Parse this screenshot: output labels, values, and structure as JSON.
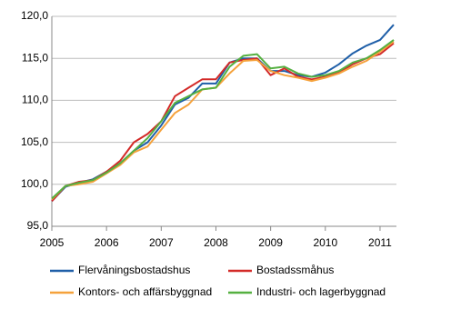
{
  "chart_data": {
    "type": "line",
    "x": [
      2005,
      2005.25,
      2005.5,
      2005.75,
      2006,
      2006.25,
      2006.5,
      2006.75,
      2007,
      2007.25,
      2007.5,
      2007.75,
      2008,
      2008.25,
      2008.5,
      2008.75,
      2009,
      2009.25,
      2009.5,
      2009.75,
      2010,
      2010.25,
      2010.5,
      2010.75,
      2011,
      2011.25
    ],
    "series": [
      {
        "name": "Flervåningsbostadshus",
        "color": "#1f5fa8",
        "values": [
          98.0,
          99.7,
          100.2,
          100.6,
          101.5,
          102.5,
          104.0,
          105.0,
          107.0,
          109.5,
          110.3,
          112.0,
          112.0,
          114.5,
          115.0,
          115.0,
          113.5,
          113.5,
          113.0,
          112.8,
          113.3,
          114.3,
          115.6,
          116.5,
          117.2,
          119.0
        ]
      },
      {
        "name": "Bostadssmåhus",
        "color": "#d32a28",
        "values": [
          98.0,
          99.8,
          100.3,
          100.5,
          101.5,
          102.8,
          105.0,
          106.0,
          107.5,
          110.5,
          111.5,
          112.5,
          112.5,
          114.5,
          114.8,
          115.0,
          113.0,
          113.8,
          112.8,
          112.5,
          112.8,
          113.3,
          114.3,
          115.0,
          115.5,
          116.8
        ]
      },
      {
        "name": "Kontors- och affärsbyggnad",
        "color": "#f5a23c",
        "values": [
          98.2,
          99.8,
          100.0,
          100.3,
          101.3,
          102.3,
          103.8,
          104.5,
          106.5,
          108.5,
          109.5,
          111.3,
          111.5,
          113.2,
          114.7,
          114.8,
          113.5,
          113.0,
          112.7,
          112.3,
          112.7,
          113.2,
          114.0,
          114.7,
          115.8,
          117.0
        ]
      },
      {
        "name": "Industri- och lagerbyggnad",
        "color": "#55b041",
        "values": [
          98.3,
          99.8,
          100.2,
          100.5,
          101.4,
          102.5,
          104.0,
          105.5,
          107.5,
          109.7,
          110.5,
          111.3,
          111.5,
          114.0,
          115.3,
          115.5,
          113.8,
          114.0,
          113.2,
          112.8,
          113.0,
          113.5,
          114.5,
          115.0,
          116.0,
          117.2
        ]
      }
    ],
    "xlim": [
      2005,
      2011.3
    ],
    "xticks": [
      2005,
      2006,
      2007,
      2008,
      2009,
      2010,
      2011
    ],
    "ylim": [
      95,
      120
    ],
    "yticks": [
      {
        "value": 95,
        "label": "95,0"
      },
      {
        "value": 100,
        "label": "100,0"
      },
      {
        "value": 105,
        "label": "105,0"
      },
      {
        "value": 110,
        "label": "110,0"
      },
      {
        "value": 115,
        "label": "115,0"
      },
      {
        "value": 120,
        "label": "120,0"
      }
    ],
    "grid": true
  }
}
